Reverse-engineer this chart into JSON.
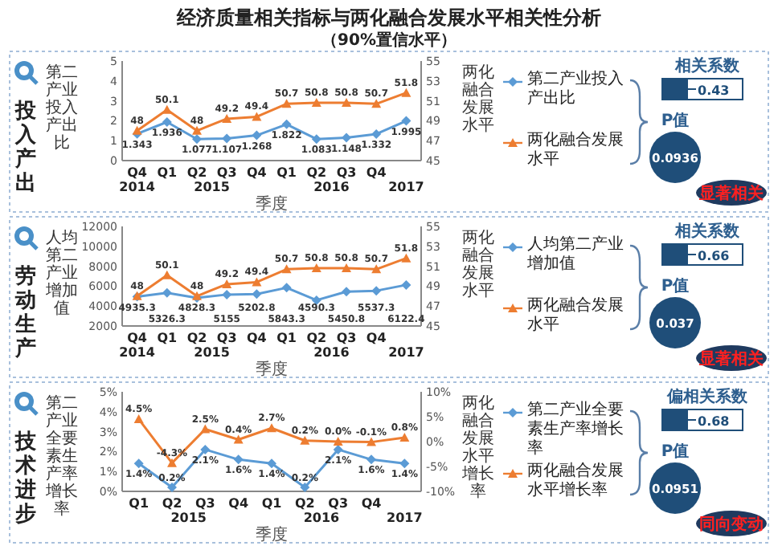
{
  "chart_data": [
    {
      "type": "line",
      "title": "经济质量相关指标与两化融合发展水平相关性分析",
      "subtitle": "（90%置信水平）",
      "annotations": [
        "投入产出",
        "2014",
        "2015",
        "2016",
        "2017"
      ],
      "categories": [
        "Q4",
        "Q1",
        "Q2",
        "Q3",
        "Q4",
        "Q1",
        "Q2",
        "Q3",
        "Q4",
        null
      ],
      "xlabel": "季度",
      "ylabel": "第二产业投入产出比",
      "y2label": "两化融合发展水平",
      "ylim": [
        0,
        5
      ],
      "yticks": [
        0,
        1,
        2,
        3,
        4,
        5
      ],
      "y2lim": [
        45,
        55
      ],
      "y2ticks": [
        45,
        47,
        49,
        51,
        53,
        55
      ],
      "data_labels": true,
      "legend": "right",
      "series": [
        {
          "name": "第二产业投入产出比",
          "color": "#5b9bd5",
          "marker": "diamond",
          "values": [
            1.343,
            1.936,
            1.077,
            1.107,
            1.268,
            1.822,
            1.083,
            1.148,
            1.332,
            1.995
          ]
        },
        {
          "name": "两化融合发展水平",
          "color": "#ed7d31",
          "marker": "triangle",
          "axis": "y2",
          "values": [
            48,
            50.1,
            48,
            49.2,
            49.4,
            50.7,
            50.8,
            50.8,
            50.7,
            51.8
          ]
        }
      ]
    },
    {
      "type": "other",
      "title": "相关系数",
      "annotations": [
        "0.43",
        "P值",
        "0.0936",
        "显著相关"
      ]
    },
    {
      "type": "line",
      "annotations": [
        "劳动生产",
        "2014",
        "2015",
        "2016",
        "2017"
      ],
      "categories": [
        "Q4",
        "Q1",
        "Q2",
        "Q3",
        "Q4",
        "Q1",
        "Q2",
        "Q3",
        "Q4",
        null
      ],
      "xlabel": "季度",
      "ylabel": "人均第二产业增加值",
      "y2label": "两化融合发展水平",
      "ylim": [
        2000,
        12000
      ],
      "yticks": [
        2000,
        4000,
        6000,
        8000,
        10000,
        12000
      ],
      "y2lim": [
        45,
        55
      ],
      "y2ticks": [
        45,
        47,
        49,
        51,
        53,
        55
      ],
      "data_labels": true,
      "legend": "right",
      "series": [
        {
          "name": "人均第二产业增加值",
          "color": "#5b9bd5",
          "marker": "diamond",
          "values": [
            4935.3,
            5326.3,
            4828.3,
            5155,
            5202.8,
            5843.3,
            4590.3,
            5450.8,
            5537.3,
            6122.4
          ]
        },
        {
          "name": "两化融合发展水平",
          "color": "#ed7d31",
          "marker": "triangle",
          "axis": "y2",
          "values": [
            48,
            50.1,
            48,
            49.2,
            49.4,
            50.7,
            50.8,
            50.8,
            50.7,
            51.8
          ]
        }
      ]
    },
    {
      "type": "other",
      "title": "相关系数",
      "annotations": [
        "0.66",
        "P值",
        "0.037",
        "显著相关"
      ]
    },
    {
      "type": "line",
      "annotations": [
        "技术进步",
        "2015",
        "2016",
        "2017"
      ],
      "categories": [
        "Q1",
        "Q2",
        "Q3",
        "Q4",
        "Q1",
        "Q2",
        "Q3",
        "Q4",
        null
      ],
      "xlabel": "季度",
      "ylabel": "第二产业全要素生产率增长率",
      "y2label": "两化融合发展水平增长率",
      "ylim": [
        0,
        5
      ],
      "yticks": [
        {
          "value": 0,
          "label": "0%"
        },
        {
          "value": 1,
          "label": "1%"
        },
        {
          "value": 2,
          "label": "2%"
        },
        {
          "value": 3,
          "label": "3%"
        },
        {
          "value": 4,
          "label": "4%"
        },
        {
          "value": 5,
          "label": "5%"
        }
      ],
      "y2lim": [
        -10,
        10
      ],
      "y2ticks": [
        {
          "value": -10,
          "label": "-10%"
        },
        {
          "value": -5,
          "label": "-5%"
        },
        {
          "value": 0,
          "label": "0%"
        },
        {
          "value": 5,
          "label": "5%"
        },
        {
          "value": 10,
          "label": "10%"
        }
      ],
      "legend": "right",
      "series": [
        {
          "name": "第二产业全要素生产率增长率",
          "color": "#5b9bd5",
          "marker": "diamond",
          "values": [
            1.4,
            0.2,
            2.1,
            1.6,
            1.4,
            0.2,
            2.1,
            1.6,
            1.4
          ],
          "value_labels": [
            "1.4%",
            "0.2%",
            "2.1%",
            "1.6%",
            "1.4%",
            "0.2%",
            "2.1%",
            "1.6%",
            "1.4%"
          ]
        },
        {
          "name": "两化融合发展水平增长率",
          "color": "#ed7d31",
          "marker": "triangle",
          "axis": "y2",
          "values": [
            4.5,
            -4.3,
            2.5,
            0.4,
            2.7,
            0.2,
            0.0,
            -0.1,
            0.8
          ],
          "value_labels": [
            "4.5%",
            "-4.3%",
            "2.5%",
            "0.4%",
            "2.7%",
            "0.2%",
            "0.0%",
            "-0.1%",
            "0.8%"
          ]
        }
      ]
    },
    {
      "type": "other",
      "title": "偏相关系数",
      "annotations": [
        "0.68",
        "P值",
        "0.0951",
        "同向变动"
      ]
    }
  ]
}
